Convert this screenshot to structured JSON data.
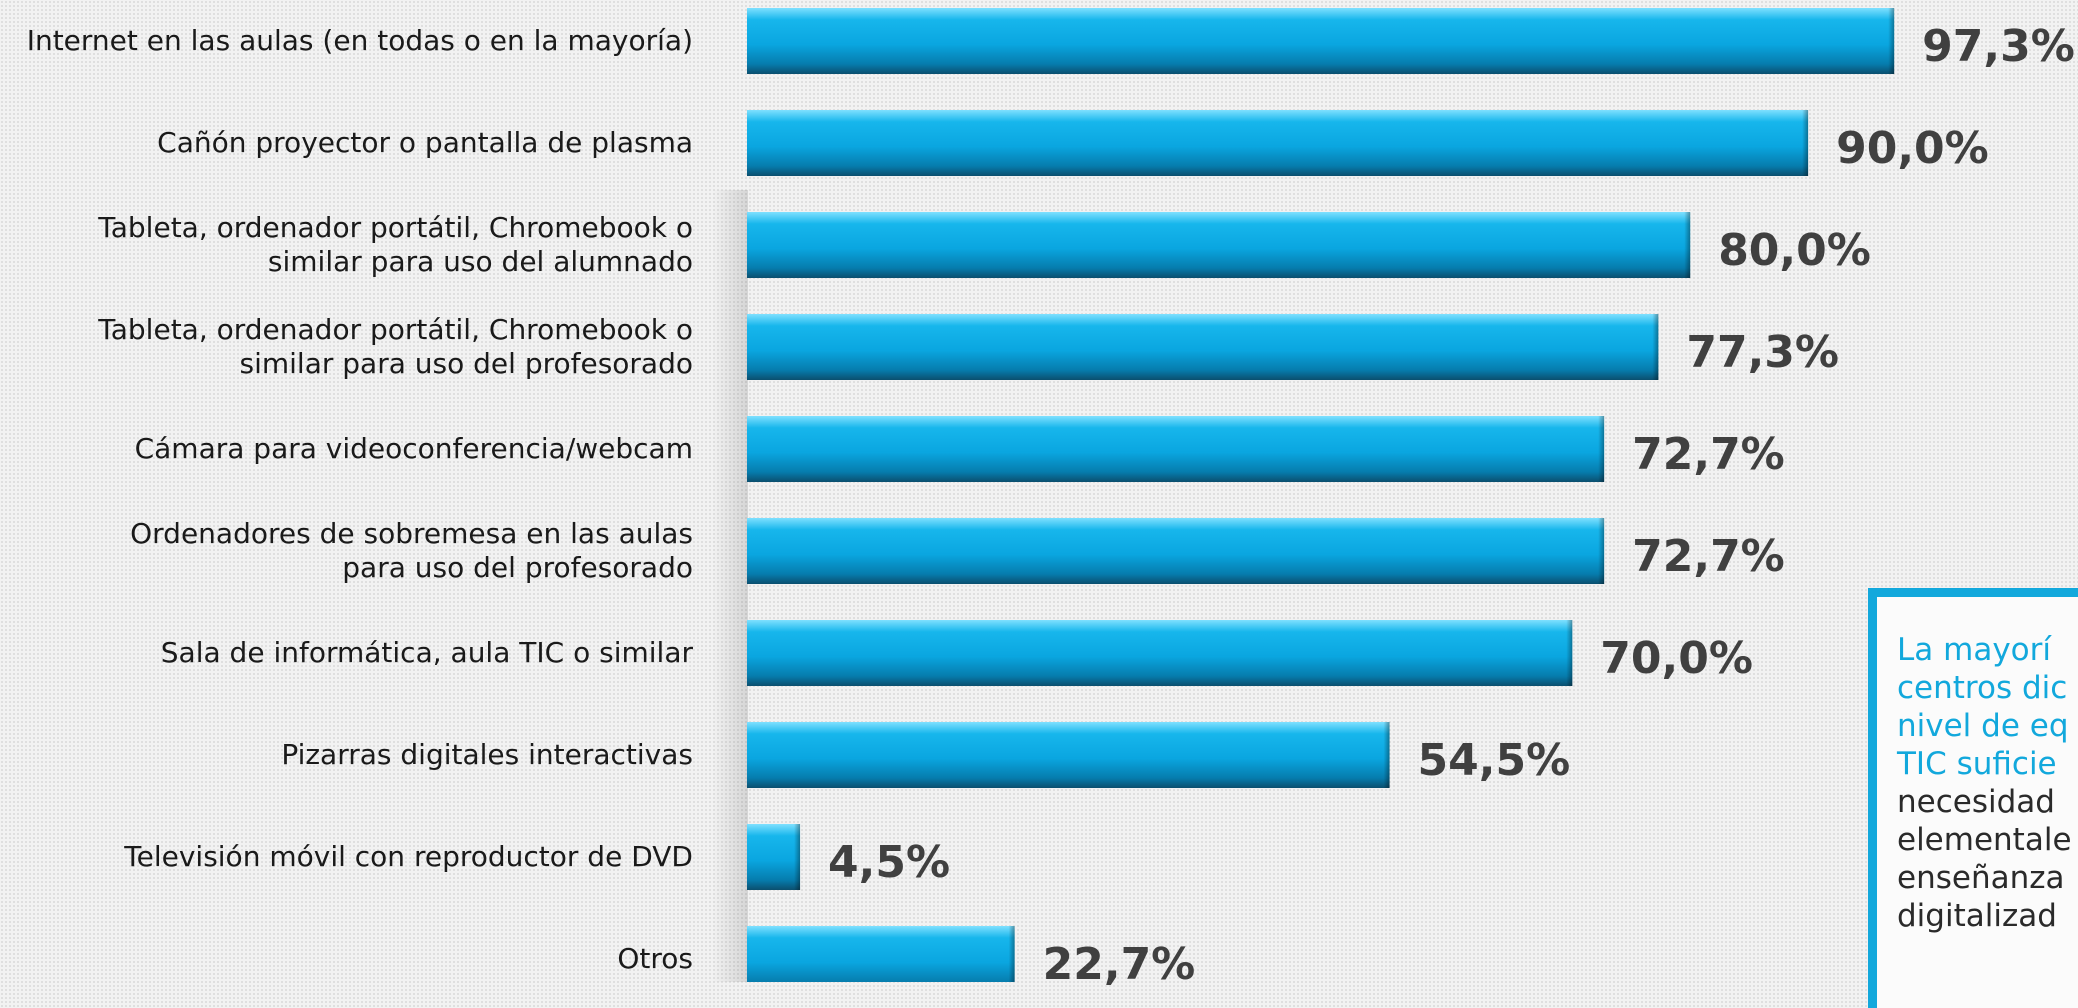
{
  "chart_data": {
    "type": "bar",
    "orientation": "horizontal",
    "categories": [
      "Internet en las aulas (en todas o en la mayoría)",
      "Cañón proyector o pantalla de plasma",
      "Tableta, ordenador portátil, Chromebook o\nsimilar para uso del alumnado",
      "Tableta, ordenador portátil, Chromebook o\nsimilar para uso del profesorado",
      "Cámara para videoconferencia/webcam",
      "Ordenadores de sobremesa en las aulas\npara uso del profesorado",
      "Sala de informática, aula TIC o similar",
      "Pizarras digitales interactivas",
      "Televisión móvil con reproductor de DVD",
      "Otros"
    ],
    "values": [
      97.3,
      90.0,
      80.0,
      77.3,
      72.7,
      72.7,
      70.0,
      54.5,
      4.5,
      22.7
    ],
    "value_labels": [
      "97,3%",
      "90,0%",
      "80,0%",
      "77,3%",
      "72,7%",
      "72,7%",
      "70,0%",
      "54,5%",
      "4,5%",
      "22,7%"
    ],
    "xlim": [
      0,
      100
    ],
    "grid": false,
    "bar_color": "#12a8dc"
  },
  "note": {
    "highlight": "La mayorí\ncentros dic\nnivel de eq\nTIC suficie",
    "body": "necesidad\nelementale\nenseñanza\ndigitalizad"
  }
}
